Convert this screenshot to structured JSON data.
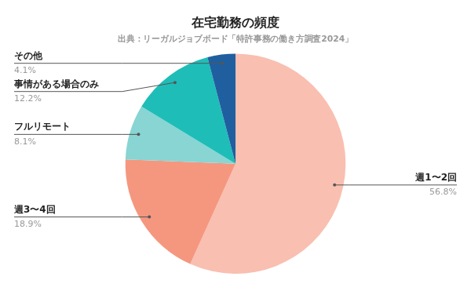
{
  "chart_data": {
    "type": "pie",
    "title": "在宅勤務の頻度",
    "subtitle": "出典：リーガルジョブボード「特許事務の働き方調査2024」",
    "categories": [
      "週1〜2回",
      "週3〜4回",
      "フルリモート",
      "事情がある場合のみ",
      "その他"
    ],
    "values": [
      56.8,
      18.9,
      8.1,
      12.2,
      4.1
    ],
    "value_labels": [
      "56.8%",
      "18.9%",
      "8.1%",
      "12.2%",
      "4.1%"
    ],
    "colors": [
      "#f9bfb0",
      "#f5977f",
      "#88d5d3",
      "#1fbdb8",
      "#1f5fa0"
    ],
    "data_labels": true
  }
}
